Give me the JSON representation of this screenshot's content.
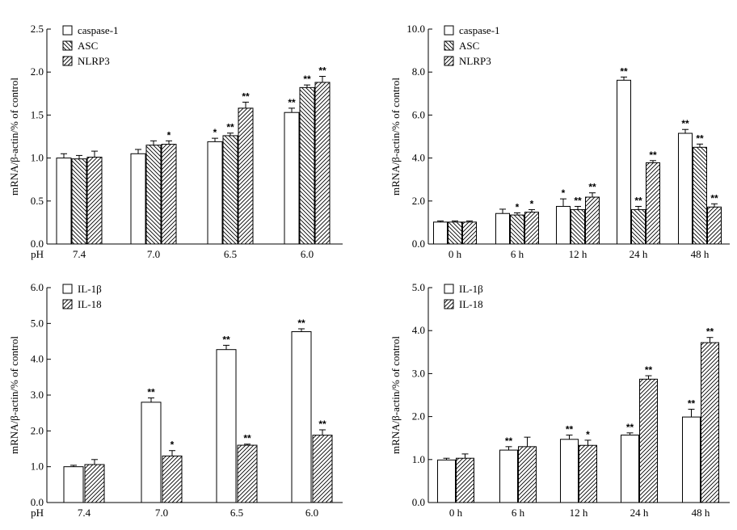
{
  "figure": {
    "description_label": "mRNA expression bar charts"
  },
  "chart_data": [
    {
      "type": "bar",
      "panel": "top-left",
      "title": "",
      "xlabel": "",
      "ylabel": "mRNA/β-actin/% of control",
      "ylim": [
        0,
        2.5
      ],
      "yticks": [
        "0.0",
        "0.5",
        "1.0",
        "1.5",
        "2.0",
        "2.5"
      ],
      "ytick_values": [
        0,
        0.5,
        1.0,
        1.5,
        2.0,
        2.5
      ],
      "x_prefix": "pH",
      "categories": [
        "7.4",
        "7.0",
        "6.5",
        "6.0"
      ],
      "legend_position": "top-left",
      "series": [
        {
          "name": "caspase-1",
          "pattern": "white",
          "values": [
            1.0,
            1.05,
            1.19,
            1.53
          ],
          "errors": [
            0.05,
            0.05,
            0.04,
            0.05
          ],
          "sig": [
            "",
            "",
            "*",
            "**"
          ]
        },
        {
          "name": "ASC",
          "pattern": "back",
          "values": [
            0.99,
            1.15,
            1.26,
            1.82
          ],
          "errors": [
            0.04,
            0.05,
            0.03,
            0.03
          ],
          "sig": [
            "",
            "",
            "**",
            "**"
          ]
        },
        {
          "name": "NLRP3",
          "pattern": "fwd",
          "values": [
            1.01,
            1.16,
            1.58,
            1.88
          ],
          "errors": [
            0.07,
            0.04,
            0.07,
            0.07
          ],
          "sig": [
            "",
            "*",
            "**",
            "**"
          ]
        }
      ]
    },
    {
      "type": "bar",
      "panel": "top-right",
      "title": "",
      "xlabel": "",
      "ylabel": "mRNA/β-actin/% of control",
      "ylim": [
        0,
        10
      ],
      "yticks": [
        "0.0",
        "2.0",
        "4.0",
        "6.0",
        "8.0",
        "10.0"
      ],
      "ytick_values": [
        0,
        2,
        4,
        6,
        8,
        10
      ],
      "x_prefix": "",
      "categories": [
        "0 h",
        "6 h",
        "12 h",
        "24 h",
        "48 h"
      ],
      "legend_position": "top-left",
      "series": [
        {
          "name": "caspase-1",
          "pattern": "white",
          "values": [
            1.02,
            1.42,
            1.75,
            7.62,
            5.15
          ],
          "errors": [
            0.05,
            0.2,
            0.35,
            0.15,
            0.18
          ],
          "sig": [
            "",
            "",
            "*",
            "**",
            "**"
          ]
        },
        {
          "name": "ASC",
          "pattern": "back",
          "values": [
            1.02,
            1.35,
            1.6,
            1.6,
            4.5
          ],
          "errors": [
            0.05,
            0.1,
            0.15,
            0.15,
            0.15
          ],
          "sig": [
            "",
            "*",
            "**",
            "**",
            "**"
          ]
        },
        {
          "name": "NLRP3",
          "pattern": "fwd",
          "values": [
            1.02,
            1.48,
            2.18,
            3.78,
            1.72
          ],
          "errors": [
            0.05,
            0.12,
            0.2,
            0.1,
            0.15
          ],
          "sig": [
            "",
            "*",
            "**",
            "**",
            "**"
          ]
        }
      ]
    },
    {
      "type": "bar",
      "panel": "bottom-left",
      "title": "",
      "xlabel": "",
      "ylabel": "mRNA/β-actin/% of control",
      "ylim": [
        0,
        6
      ],
      "yticks": [
        "0.0",
        "1.0",
        "2.0",
        "3.0",
        "4.0",
        "5.0",
        "6.0"
      ],
      "ytick_values": [
        0,
        1,
        2,
        3,
        4,
        5,
        6
      ],
      "x_prefix": "pH",
      "categories": [
        "7.4",
        "7.0",
        "6.5",
        "6.0"
      ],
      "legend_position": "top-left",
      "series": [
        {
          "name": "IL-1β",
          "pattern": "white",
          "values": [
            1.0,
            2.8,
            4.27,
            4.77
          ],
          "errors": [
            0.04,
            0.12,
            0.12,
            0.08
          ],
          "sig": [
            "",
            "**",
            "**",
            "**"
          ]
        },
        {
          "name": "IL-18",
          "pattern": "fwd",
          "values": [
            1.06,
            1.3,
            1.6,
            1.88
          ],
          "errors": [
            0.14,
            0.15,
            0.03,
            0.15
          ],
          "sig": [
            "",
            "*",
            "**",
            "**"
          ]
        }
      ]
    },
    {
      "type": "bar",
      "panel": "bottom-right",
      "title": "",
      "xlabel": "",
      "ylabel": "mRNA/β-actin/% of control",
      "ylim": [
        0,
        5
      ],
      "yticks": [
        "0.0",
        "1.0",
        "2.0",
        "3.0",
        "4.0",
        "5.0"
      ],
      "ytick_values": [
        0,
        1,
        2,
        3,
        4,
        5
      ],
      "x_prefix": "",
      "categories": [
        "0 h",
        "6 h",
        "12 h",
        "24 h",
        "48 h"
      ],
      "legend_position": "top-left",
      "series": [
        {
          "name": "IL-1β",
          "pattern": "white",
          "values": [
            0.99,
            1.22,
            1.47,
            1.57,
            1.99
          ],
          "errors": [
            0.04,
            0.08,
            0.1,
            0.05,
            0.18
          ],
          "sig": [
            "",
            "**",
            "**",
            "**",
            "**"
          ]
        },
        {
          "name": "IL-18",
          "pattern": "fwd",
          "values": [
            1.03,
            1.3,
            1.33,
            2.87,
            3.72
          ],
          "errors": [
            0.1,
            0.22,
            0.12,
            0.08,
            0.12
          ],
          "sig": [
            "",
            "",
            "*",
            "**",
            "**"
          ]
        }
      ]
    }
  ]
}
